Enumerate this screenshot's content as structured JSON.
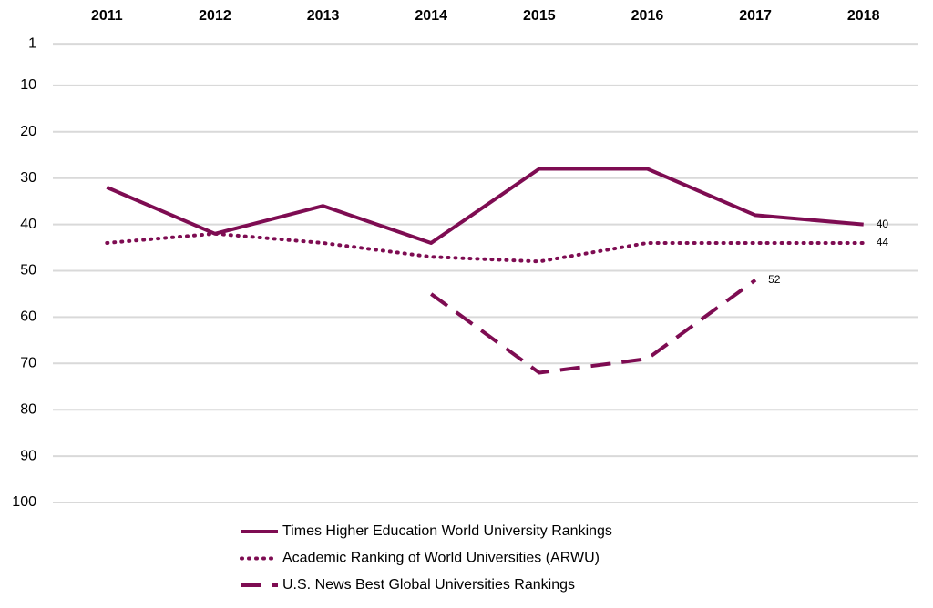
{
  "chart_data": {
    "type": "line",
    "categories": [
      "2011",
      "2012",
      "2013",
      "2014",
      "2015",
      "2016",
      "2017",
      "2018"
    ],
    "series": [
      {
        "name": "Times Higher Education  World University Rankings",
        "color": "#7e0c52",
        "dash": "solid",
        "values": [
          32,
          42,
          36,
          44,
          28,
          28,
          38,
          40
        ]
      },
      {
        "name": "Academic Ranking of World Universities (ARWU)",
        "color": "#7e0c52",
        "dash": "dotted",
        "values": [
          44,
          42,
          44,
          47,
          48,
          44,
          44,
          44
        ]
      },
      {
        "name": "U.S. News Best Global Universities Rankings",
        "color": "#7e0c52",
        "dash": "dashed",
        "values": [
          null,
          null,
          null,
          55,
          72,
          69,
          52,
          null
        ]
      }
    ],
    "ylim": [
      0,
      100
    ],
    "y_inverted": true,
    "yticks": [
      1,
      10,
      20,
      30,
      40,
      50,
      60,
      70,
      80,
      90,
      100
    ],
    "grid": true,
    "legend": "bottom",
    "label_last_point": true
  }
}
